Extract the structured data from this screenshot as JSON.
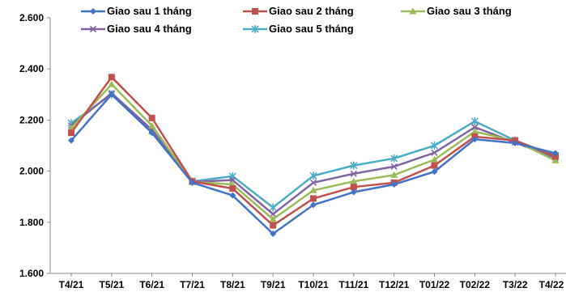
{
  "chart_data": {
    "type": "line",
    "categories": [
      "T4/21",
      "T5/21",
      "T6/21",
      "T7/21",
      "T8/21",
      "T9/21",
      "T10/21",
      "T11/21",
      "T12/21",
      "T01/22",
      "T02/22",
      "T3/22",
      "T4/22"
    ],
    "y_ticks": [
      "1.600",
      "1.800",
      "2.000",
      "2.200",
      "2.400",
      "2.600"
    ],
    "ylim": [
      1600,
      2600
    ],
    "grid": false,
    "legend_position": "top",
    "series": [
      {
        "name": "Giao sau 1 tháng",
        "color": "#4472C4",
        "marker": "diamond",
        "values": [
          2120,
          2300,
          2150,
          1955,
          1905,
          1755,
          1868,
          1918,
          1948,
          1998,
          2125,
          2110,
          2070
        ]
      },
      {
        "name": "Giao sau 2 tháng",
        "color": "#C0504D",
        "marker": "square",
        "values": [
          2150,
          2368,
          2208,
          1960,
          1932,
          1788,
          1893,
          1938,
          1955,
          2022,
          2135,
          2120,
          2058
        ]
      },
      {
        "name": "Giao sau 3 tháng",
        "color": "#9BBB59",
        "marker": "triangle",
        "values": [
          2168,
          2340,
          2178,
          1958,
          1948,
          1812,
          1925,
          1960,
          1985,
          2045,
          2155,
          2118,
          2042
        ]
      },
      {
        "name": "Giao sau 4 tháng",
        "color": "#8064A2",
        "marker": "x",
        "values": [
          2178,
          2305,
          2162,
          1958,
          1965,
          1832,
          1955,
          1990,
          2018,
          2072,
          2172,
          2112,
          2052
        ]
      },
      {
        "name": "Giao sau 5 tháng",
        "color": "#4BACC6",
        "marker": "star",
        "values": [
          2188,
          2300,
          2158,
          1960,
          1980,
          1858,
          1982,
          2022,
          2050,
          2100,
          2195,
          2120,
          2060
        ]
      }
    ]
  }
}
